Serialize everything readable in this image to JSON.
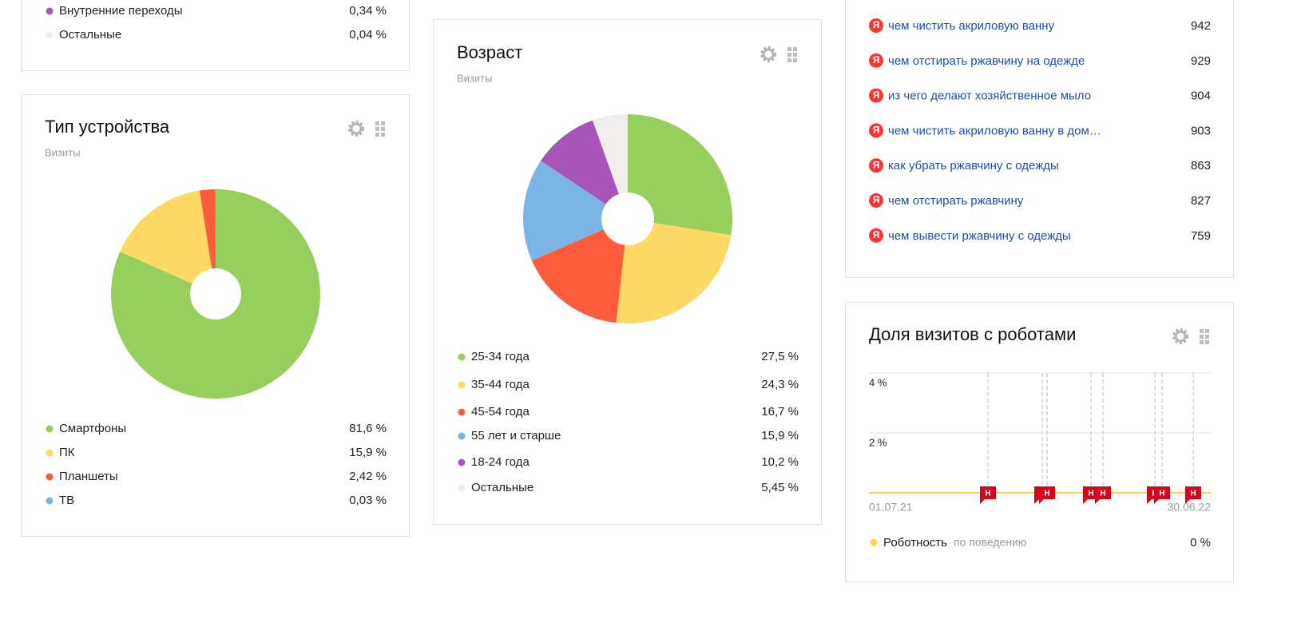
{
  "widgets": [
    {
      "legend": [
        {
          "name": "Внутренние переходы",
          "value": 0.34,
          "label": "0,34 %",
          "color": "#a855b9"
        },
        {
          "name": "Остальные",
          "value": 0.04,
          "label": "0,04 %",
          "color": "#eeeeee"
        }
      ]
    },
    {
      "title": "Тип устройства",
      "subtitle": "Визиты",
      "type": "pie",
      "legend": [
        {
          "name": "Смартфоны",
          "value": 81.6,
          "label": "81,6 %",
          "color": "#97cf5f"
        },
        {
          "name": "ПК",
          "value": 15.9,
          "label": "15,9 %",
          "color": "#ffd966"
        },
        {
          "name": "Планшеты",
          "value": 2.42,
          "label": "2,42 %",
          "color": "#ff5c3e"
        },
        {
          "name": "ТВ",
          "value": 0.03,
          "label": "0,03 %",
          "color": "#7ab5e6"
        }
      ]
    },
    {
      "title": "Возраст",
      "subtitle": "Визиты",
      "type": "pie",
      "legend": [
        {
          "name": "25-34 года",
          "value": 27.5,
          "label": "27,5 %",
          "color": "#97cf5f"
        },
        {
          "name": "35-44 года",
          "value": 24.3,
          "label": "24,3 %",
          "color": "#ffd966"
        },
        {
          "name": "45-54 года",
          "value": 16.7,
          "label": "16,7 %",
          "color": "#ff5c3e"
        },
        {
          "name": "55 лет и старше",
          "value": 15.9,
          "label": "15,9 %",
          "color": "#7ab5e6"
        },
        {
          "name": "18-24 года",
          "value": 10.2,
          "label": "10,2 %",
          "color": "#a855b9"
        },
        {
          "name": "Остальные",
          "value": 5.45,
          "label": "5,45 %",
          "color": "#f0eeec"
        }
      ]
    },
    {
      "icon": "Я",
      "phrases": [
        {
          "text": "чем чистить акриловую ванну",
          "visits": 942
        },
        {
          "text": "чем отстирать ржавчину на одежде",
          "visits": 929
        },
        {
          "text": "из чего делают хозяйственное мыло",
          "visits": 904
        },
        {
          "text": "чем чистить акриловую ванну в дом…",
          "visits": 903
        },
        {
          "text": "как убрать ржавчину с одежды",
          "visits": 863
        },
        {
          "text": "чем отстирать ржавчину",
          "visits": 827
        },
        {
          "text": "чем вывести ржавчину с одежды",
          "visits": 759
        }
      ]
    },
    {
      "title": "Доля визитов с роботами",
      "type": "line",
      "ylim": [
        0,
        4
      ],
      "yticks": [
        {
          "value": 2,
          "label": "2 %"
        },
        {
          "value": 4,
          "label": "4 %"
        }
      ],
      "x_labels": [
        "01.07.21",
        "30.06.22"
      ],
      "annotations": [
        "Н",
        "Н",
        "Н",
        "Н",
        "Н",
        "Н",
        "Н",
        "Н"
      ],
      "legend": [
        {
          "name": "Роботность",
          "note": "по поведению",
          "value": 0,
          "label": "0 %",
          "color": "#ffd54a"
        }
      ]
    }
  ]
}
